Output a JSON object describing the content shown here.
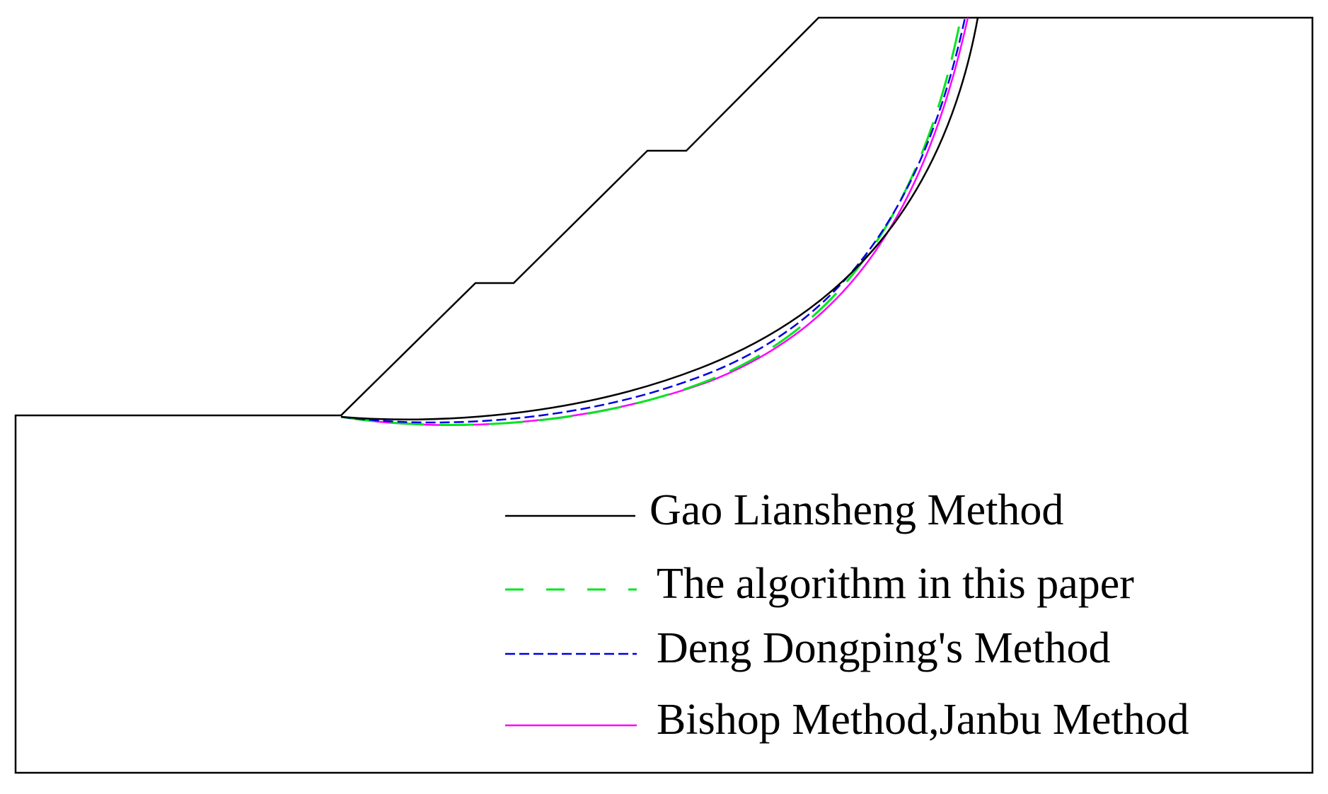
{
  "colors": {
    "outline": "#000000",
    "gao": "#000000",
    "algorithm": "#00e61e",
    "deng": "#0000e0",
    "bishop": "#ff00ff",
    "background": "#ffffff"
  },
  "legend": {
    "position": "bottom-right",
    "items": [
      {
        "label": "Gao Liansheng Method",
        "style": "solid",
        "color": "#000000"
      },
      {
        "label": "The algorithm in this paper",
        "style": "long-dash",
        "color": "#00e61e"
      },
      {
        "label": "Deng Dongping's Method",
        "style": "short-dash",
        "color": "#0000e0"
      },
      {
        "label": "Bishop Method,Janbu Method",
        "style": "solid",
        "color": "#ff00ff"
      }
    ]
  }
}
